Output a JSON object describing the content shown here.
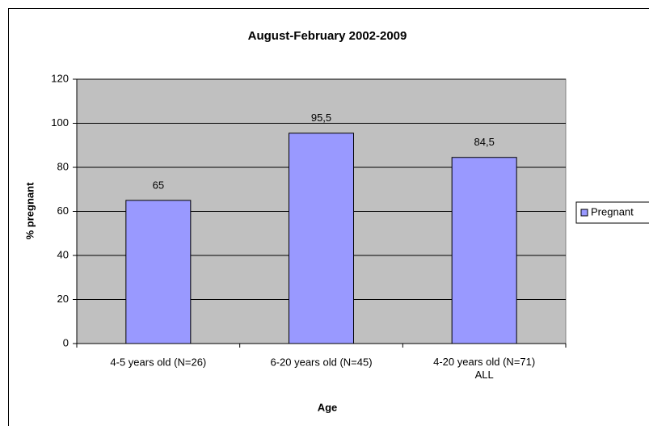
{
  "chart_data": {
    "type": "bar",
    "title": "August-February 2002-2009",
    "x_label": "Age",
    "y_label": "% pregnant",
    "categories": [
      "4-5 years old (N=26)",
      "6-20 years old (N=45)",
      "4-20 years old (N=71)\nALL"
    ],
    "series": [
      {
        "name": "Pregnant",
        "color": "#9999ff",
        "values": [
          65,
          95.5,
          84.5
        ],
        "value_labels": [
          "65",
          "95,5",
          "84,5"
        ]
      }
    ],
    "ylim": [
      0,
      120
    ],
    "yticks": [
      0,
      20,
      40,
      60,
      80,
      100,
      120
    ],
    "grid": true,
    "legend": "right"
  }
}
